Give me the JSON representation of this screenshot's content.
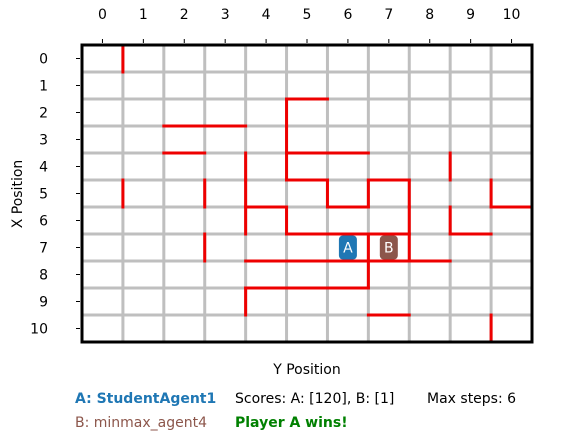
{
  "board": {
    "rows": 11,
    "cols": 11,
    "xlabel": "Y Position",
    "ylabel": "X Position",
    "col_ticks": [
      "0",
      "1",
      "2",
      "3",
      "4",
      "5",
      "6",
      "7",
      "8",
      "9",
      "10"
    ],
    "row_ticks": [
      "0",
      "1",
      "2",
      "3",
      "4",
      "5",
      "6",
      "7",
      "8",
      "9",
      "10"
    ],
    "grid_color": "#bfbfbf",
    "wall_color": "#ee0000",
    "border_color": "#000000",
    "walls": [
      {
        "o": "v",
        "r": 0,
        "c": 1
      },
      {
        "o": "h",
        "r": 2,
        "c": 5
      },
      {
        "o": "v",
        "r": 2,
        "c": 5
      },
      {
        "o": "h",
        "r": 3,
        "c": 2
      },
      {
        "o": "h",
        "r": 3,
        "c": 3
      },
      {
        "o": "v",
        "r": 3,
        "c": 5
      },
      {
        "o": "h",
        "r": 4,
        "c": 2
      },
      {
        "o": "h",
        "r": 4,
        "c": 5
      },
      {
        "o": "h",
        "r": 4,
        "c": 6
      },
      {
        "o": "v",
        "r": 4,
        "c": 4
      },
      {
        "o": "v",
        "r": 4,
        "c": 5
      },
      {
        "o": "v",
        "r": 4,
        "c": 9
      },
      {
        "o": "h",
        "r": 5,
        "c": 5
      },
      {
        "o": "h",
        "r": 5,
        "c": 7
      },
      {
        "o": "v",
        "r": 5,
        "c": 1
      },
      {
        "o": "v",
        "r": 5,
        "c": 3
      },
      {
        "o": "v",
        "r": 5,
        "c": 4
      },
      {
        "o": "v",
        "r": 5,
        "c": 6
      },
      {
        "o": "v",
        "r": 5,
        "c": 7
      },
      {
        "o": "v",
        "r": 5,
        "c": 8
      },
      {
        "o": "v",
        "r": 5,
        "c": 10
      },
      {
        "o": "h",
        "r": 6,
        "c": 4
      },
      {
        "o": "h",
        "r": 6,
        "c": 6
      },
      {
        "o": "h",
        "r": 6,
        "c": 10
      },
      {
        "o": "v",
        "r": 6,
        "c": 4
      },
      {
        "o": "v",
        "r": 6,
        "c": 5
      },
      {
        "o": "v",
        "r": 6,
        "c": 8
      },
      {
        "o": "v",
        "r": 6,
        "c": 9
      },
      {
        "o": "h",
        "r": 7,
        "c": 5
      },
      {
        "o": "h",
        "r": 7,
        "c": 6
      },
      {
        "o": "h",
        "r": 7,
        "c": 7
      },
      {
        "o": "h",
        "r": 7,
        "c": 9
      },
      {
        "o": "v",
        "r": 7,
        "c": 3
      },
      {
        "o": "v",
        "r": 7,
        "c": 7
      },
      {
        "o": "v",
        "r": 7,
        "c": 8
      },
      {
        "o": "h",
        "r": 8,
        "c": 4
      },
      {
        "o": "h",
        "r": 8,
        "c": 5
      },
      {
        "o": "h",
        "r": 8,
        "c": 6
      },
      {
        "o": "h",
        "r": 8,
        "c": 7
      },
      {
        "o": "h",
        "r": 8,
        "c": 8
      },
      {
        "o": "v",
        "r": 8,
        "c": 7
      },
      {
        "o": "h",
        "r": 9,
        "c": 4
      },
      {
        "o": "h",
        "r": 9,
        "c": 5
      },
      {
        "o": "h",
        "r": 9,
        "c": 6
      },
      {
        "o": "v",
        "r": 9,
        "c": 4
      },
      {
        "o": "h",
        "r": 10,
        "c": 7
      },
      {
        "o": "v",
        "r": 10,
        "c": 10
      }
    ],
    "agents": [
      {
        "id": "A",
        "label": "A",
        "row": 7,
        "col": 6,
        "color": "#1f77b4"
      },
      {
        "id": "B",
        "label": "B",
        "row": 7,
        "col": 7,
        "color": "#8c564b"
      }
    ]
  },
  "info": {
    "agent_a": "A: StudentAgent1",
    "agent_b": "B: minmax_agent4",
    "scores": "Scores: A: [120], B: [1]",
    "max_steps": "Max steps: 6",
    "result": "Player A wins!"
  }
}
